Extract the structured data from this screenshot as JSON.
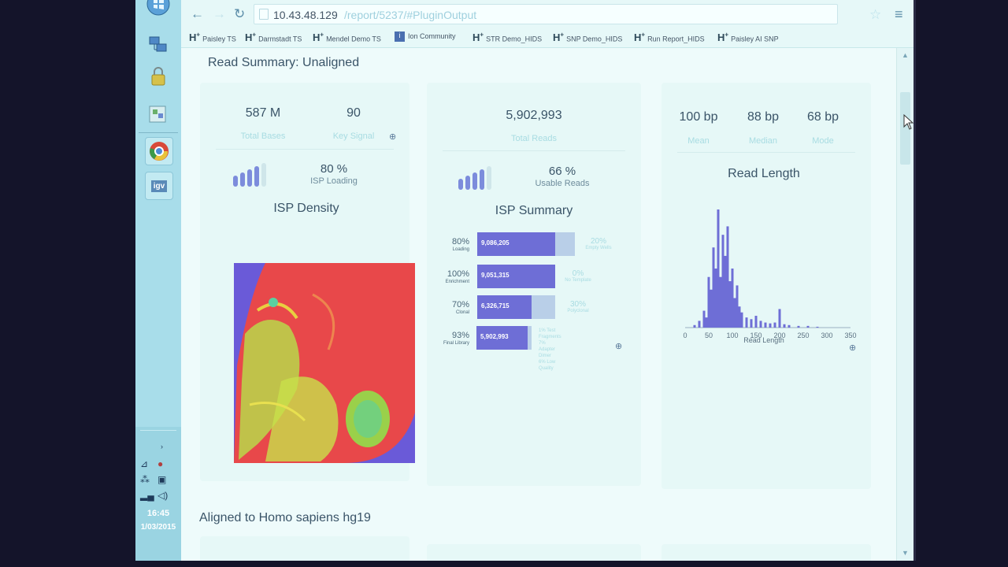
{
  "taskbar": {
    "clock_time": "16:45",
    "clock_date": "1/03/2015",
    "app_igv": "igv"
  },
  "browser": {
    "url_host": "10.43.48.129",
    "url_path": "/report/5237/#PluginOutput",
    "bookmarks": [
      {
        "prefix": "H+",
        "label": "Paisley TS"
      },
      {
        "prefix": "H+",
        "label": "Darmstadt TS"
      },
      {
        "prefix": "H+",
        "label": "Mendel Demo TS"
      },
      {
        "prefix": "ion",
        "label": "Ion Community"
      },
      {
        "prefix": "H+",
        "label": "STR Demo_HIDS"
      },
      {
        "prefix": "H+",
        "label": "SNP Demo_HIDS"
      },
      {
        "prefix": "H+",
        "label": "Run Report_HIDS"
      },
      {
        "prefix": "H+",
        "label": "Paisley AI SNP"
      }
    ]
  },
  "report": {
    "section_unaligned": "Read Summary: Unaligned",
    "section_aligned": "Aligned to Homo sapiens hg19",
    "panel1": {
      "total_bases_value": "587 M",
      "total_bases_label": "Total Bases",
      "key_signal_value": "90",
      "key_signal_label": "Key Signal",
      "loading_pct": "80 %",
      "loading_label": "ISP Loading",
      "loading_level": 0.8,
      "chart_title": "ISP Density"
    },
    "panel2": {
      "total_reads_value": "5,902,993",
      "total_reads_label": "Total Reads",
      "usable_pct": "66 %",
      "usable_label": "Usable Reads",
      "usable_level": 0.66,
      "chart_title": "ISP Summary",
      "rows": [
        {
          "pct": "80%",
          "label": "Loading",
          "count": "9,086,205",
          "fill": 0.8,
          "right_pct": "20%",
          "right_label": "Empty Wells"
        },
        {
          "pct": "100%",
          "label": "Enrichment",
          "count": "9,051,315",
          "fill": 1.0,
          "right_pct": "0%",
          "right_label": "No Template"
        },
        {
          "pct": "70%",
          "label": "Clonal",
          "count": "6,326,715",
          "fill": 0.7,
          "right_pct": "30%",
          "right_label": "Polyclonal"
        },
        {
          "pct": "93%",
          "label": "Final Library",
          "count": "5,902,993",
          "fill": 0.93,
          "right_pct": "",
          "right_label": ""
        }
      ],
      "notes": [
        "1% Test Fragments",
        "7% Adapter Dimer",
        "6% Low Quality"
      ]
    },
    "panel3": {
      "mean_value": "100 bp",
      "mean_label": "Mean",
      "median_value": "88 bp",
      "median_label": "Median",
      "mode_value": "68 bp",
      "mode_label": "Mode",
      "chart_title": "Read Length",
      "xlabel": "Read Length",
      "x_ticks": [
        "0",
        "50",
        "100",
        "150",
        "200",
        "250",
        "300",
        "350"
      ]
    }
  },
  "chart_data": {
    "type": "bar",
    "title": "Read Length",
    "xlabel": "Read Length",
    "ylabel": "",
    "xlim": [
      0,
      350
    ],
    "x": [
      20,
      30,
      40,
      45,
      50,
      55,
      60,
      65,
      70,
      75,
      80,
      85,
      90,
      95,
      100,
      105,
      110,
      115,
      120,
      130,
      140,
      150,
      160,
      170,
      180,
      190,
      200,
      210,
      220,
      240,
      260,
      280
    ],
    "values": [
      3,
      8,
      20,
      12,
      60,
      45,
      95,
      70,
      140,
      60,
      110,
      85,
      120,
      55,
      70,
      35,
      50,
      25,
      18,
      12,
      10,
      14,
      8,
      6,
      5,
      6,
      22,
      4,
      3,
      2,
      2,
      1
    ]
  },
  "colors": {
    "accent": "#6e6ed6",
    "label_faint": "#a8dce2",
    "text": "#3a5468"
  }
}
